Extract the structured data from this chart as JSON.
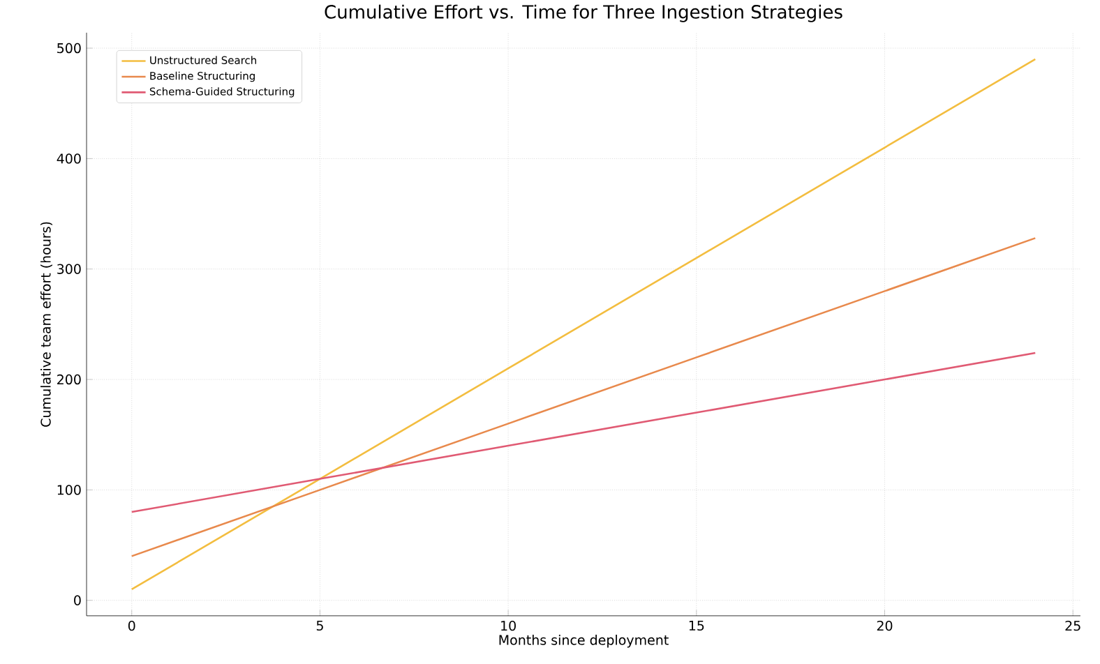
{
  "chart_data": {
    "type": "line",
    "title": "Cumulative Effort vs. Time for Three Ingestion Strategies",
    "xlabel": "Months since deployment",
    "ylabel": "Cumulative team effort (hours)",
    "xlim": [
      -1.2,
      25.2
    ],
    "xticks": [
      0,
      5,
      10,
      15,
      20,
      25
    ],
    "ylim": [
      -14,
      514
    ],
    "yticks": [
      0,
      100,
      200,
      300,
      400,
      500
    ],
    "x": [
      0,
      5,
      10,
      15,
      20,
      24
    ],
    "grid": true,
    "legend": "top left",
    "marker": "none",
    "line_style": "solid",
    "series": [
      {
        "name": "Unstructured Search",
        "color": "#f3bd3f",
        "values": [
          10,
          110,
          210,
          310,
          410,
          490
        ]
      },
      {
        "name": "Baseline Structuring",
        "color": "#e8894c",
        "values": [
          40,
          100,
          160,
          220,
          280,
          328
        ]
      },
      {
        "name": "Schema-Guided Structuring",
        "color": "#e05a73",
        "values": [
          80,
          110,
          140,
          170,
          200,
          224
        ]
      }
    ]
  }
}
